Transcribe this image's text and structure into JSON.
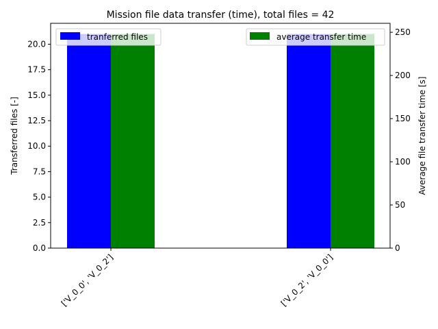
{
  "chart_data": {
    "type": "bar",
    "title": "Mission file data transfer (time), total files = 42",
    "categories": [
      "['V_0_0', 'V_0_2']",
      "['V_0_2', 'V_0_0']"
    ],
    "series": [
      {
        "name": "tranferred files",
        "axis": "left",
        "color": "#0000ff",
        "values": [
          21,
          21
        ]
      },
      {
        "name": "average transfer time",
        "axis": "right",
        "color": "#008000",
        "values": [
          248,
          248
        ]
      }
    ],
    "ylabel": "Transferred files [-]",
    "ylabel_right": "Average file transfer time [s]",
    "ylim": [
      0,
      22.05
    ],
    "ylim_right": [
      0,
      260.4
    ],
    "yticks": [
      "0.0",
      "2.5",
      "5.0",
      "7.5",
      "10.0",
      "12.5",
      "15.0",
      "17.5",
      "20.0"
    ],
    "yticks_right": [
      "0",
      "50",
      "100",
      "150",
      "200",
      "250"
    ],
    "grid": false,
    "legend_left": "top-left",
    "legend_right": "top-right"
  }
}
